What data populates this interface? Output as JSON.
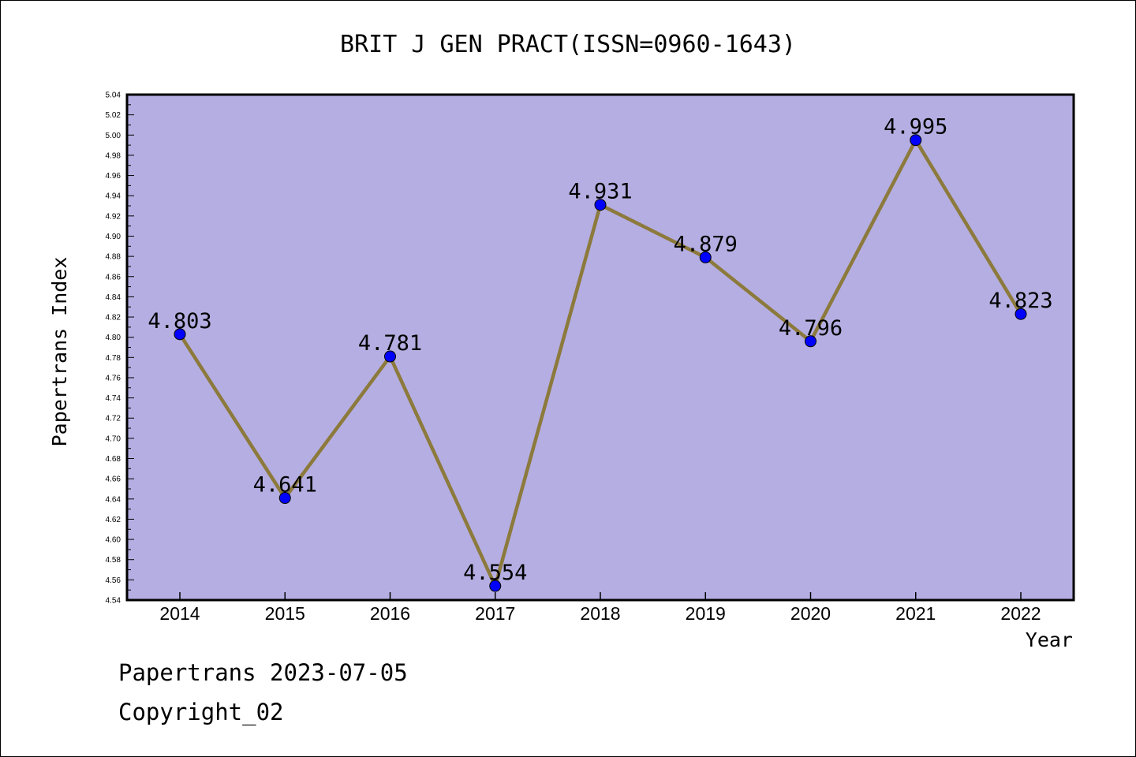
{
  "chart_data": {
    "type": "line",
    "title": "BRIT J GEN PRACT(ISSN=0960-1643)",
    "xlabel": "Year",
    "ylabel": "Papertrans Index",
    "categories": [
      "2014",
      "2015",
      "2016",
      "2017",
      "2018",
      "2019",
      "2020",
      "2021",
      "2022"
    ],
    "values": [
      4.803,
      4.641,
      4.781,
      4.554,
      4.931,
      4.879,
      4.796,
      4.995,
      4.823
    ],
    "value_labels": [
      "4.803",
      "4.641",
      "4.781",
      "4.554",
      "4.931",
      "4.879",
      "4.796",
      "4.995",
      "4.823"
    ],
    "ylim": [
      4.54,
      5.04
    ],
    "yticks": [
      "4.54",
      "4.56",
      "4.58",
      "4.60",
      "4.62",
      "4.64",
      "4.66",
      "4.68",
      "4.70",
      "4.72",
      "4.74",
      "4.76",
      "4.78",
      "4.80",
      "4.82",
      "4.84",
      "4.86",
      "4.88",
      "4.90",
      "4.92",
      "4.94",
      "4.96",
      "4.98",
      "5.00",
      "5.02",
      "5.04"
    ],
    "grid": false,
    "colors": {
      "plot_background": "#b5aee2",
      "line": "#8c7a3c",
      "marker": "#0000ff"
    }
  },
  "footer": {
    "line1": "Papertrans 2023-07-05",
    "line2": "Copyright_02"
  }
}
